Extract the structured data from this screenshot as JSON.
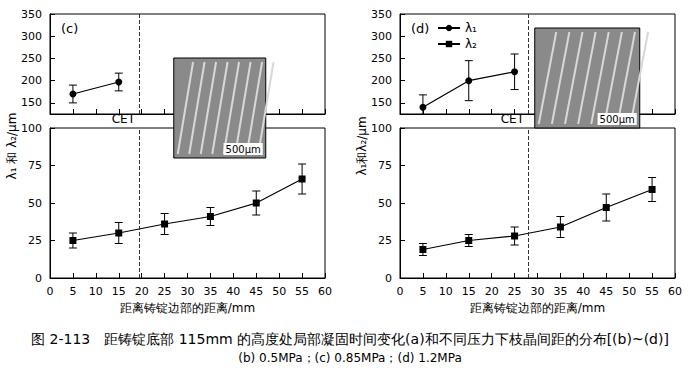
{
  "caption": [
    "图 2-113　距铸锭底部 115mm 的高度处局部凝固时间变化(a)和不同压力下枝晶间距的分布[(b)~(d)]",
    "(b) 0.5MPa；(c) 0.85MPa；(d) 1.2MPa"
  ],
  "chart_data": [
    {
      "type": "line",
      "title": "(c)",
      "x_label": "距离铸锭边部的距离/mm",
      "y_label": "λ₁ 和 λ₂/μm",
      "x": [
        5,
        15,
        25,
        35,
        45,
        55
      ],
      "xlim": [
        0,
        60
      ],
      "xticks": [
        0,
        5,
        10,
        15,
        20,
        25,
        30,
        35,
        40,
        45,
        50,
        55,
        60
      ],
      "ylim": [
        0,
        100
      ],
      "yticks": [
        0,
        25,
        50,
        75,
        100
      ],
      "y2lim": [
        125,
        350
      ],
      "y2ticks": [
        150,
        200,
        250,
        300,
        350
      ],
      "grid": false,
      "annotations": [
        {
          "text": "CET",
          "x": 19.5,
          "line_style": "dashed"
        },
        {
          "text": "500μm"
        }
      ],
      "series": [
        {
          "name": "λ₁",
          "color": "#000000",
          "marker": "circle",
          "axis": "y2",
          "values": [
            170,
            197,
            null,
            null,
            null,
            null
          ],
          "errors": [
            20,
            20,
            null,
            null,
            null,
            null
          ]
        },
        {
          "name": "λ₂",
          "color": "#000000",
          "marker": "square",
          "values": [
            25,
            30,
            36,
            41,
            50,
            66
          ],
          "errors": [
            5,
            7,
            7,
            6,
            8,
            10
          ]
        }
      ]
    },
    {
      "type": "line",
      "title": "(d)",
      "x_label": "距离铸锭边部的距离/mm",
      "y_label": "λ₁和λ₂/μm",
      "x": [
        5,
        15,
        25,
        35,
        45,
        55
      ],
      "xlim": [
        0,
        60
      ],
      "xticks": [
        0,
        5,
        10,
        15,
        20,
        25,
        30,
        35,
        40,
        45,
        50,
        55,
        60
      ],
      "ylim": [
        0,
        100
      ],
      "yticks": [
        0,
        25,
        50,
        75,
        100
      ],
      "y2lim": [
        125,
        350
      ],
      "y2ticks": [
        150,
        200,
        250,
        300,
        350
      ],
      "grid": false,
      "legend": "upper left",
      "annotations": [
        {
          "text": "CET",
          "x": 28,
          "line_style": "dashed"
        },
        {
          "text": "500μm"
        }
      ],
      "series": [
        {
          "name": "λ₁",
          "color": "#000000",
          "marker": "circle",
          "axis": "y2",
          "values": [
            140,
            200,
            220,
            null,
            null,
            null
          ],
          "errors": [
            28,
            45,
            40,
            null,
            null,
            null
          ]
        },
        {
          "name": "λ₂",
          "color": "#000000",
          "marker": "square",
          "values": [
            19,
            25,
            28,
            34,
            47,
            59
          ],
          "errors": [
            4,
            4,
            6,
            7,
            9,
            8
          ]
        }
      ]
    }
  ]
}
